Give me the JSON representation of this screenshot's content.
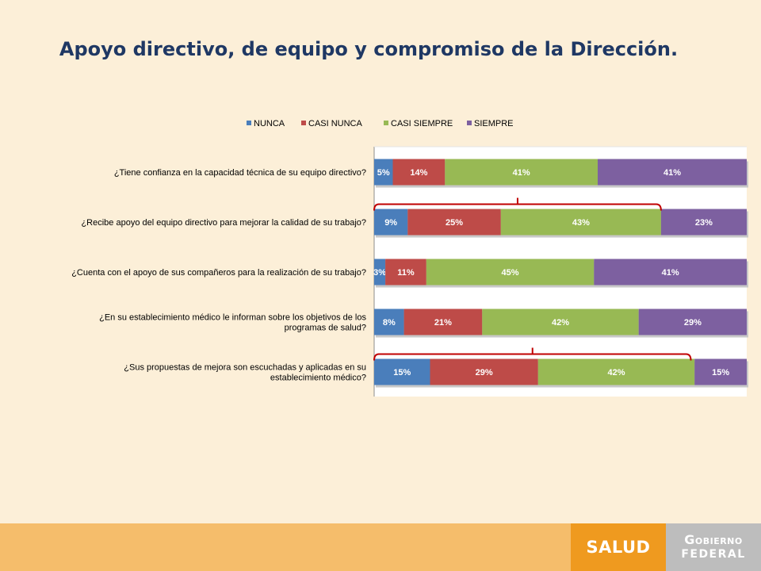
{
  "page": {
    "title": "Apoyo directivo, de equipo y compromiso de la Dirección."
  },
  "footer": {
    "salud_label": "SALUD",
    "gobierno_line1": "Gobierno",
    "gobierno_line2": "FEDERAL"
  },
  "colors": {
    "background": "#fcefd8",
    "title": "#1f3864",
    "footer_band": "#f5bd6b",
    "salud": "#ef9a1f",
    "gobierno": "#bdbdbd",
    "highlight_bracket": "#c00000"
  },
  "chart_data": {
    "type": "bar",
    "orientation": "horizontal",
    "stacked": true,
    "percent_stacked": true,
    "title": "",
    "xlabel": "",
    "ylabel": "",
    "xlim": [
      0,
      100
    ],
    "legend_position": "top",
    "grid": false,
    "categories": [
      "¿Tiene confianza en la capacidad técnica de su equipo directivo?",
      "¿Recibe apoyo del equipo directivo para mejorar la calidad de su trabajo?",
      "¿Cuenta con el apoyo de sus compañeros para la realización de su trabajo?",
      "¿En su establecimiento médico le informan sobre los objetivos de los programas de salud?",
      "¿Sus propuestas de mejora son escuchadas y  aplicadas en su establecimiento médico?"
    ],
    "category_lines": [
      [
        "¿Tiene confianza en la capacidad técnica de su equipo directivo?"
      ],
      [
        "¿Recibe apoyo del equipo directivo para mejorar la calidad de su trabajo?"
      ],
      [
        "¿Cuenta con el apoyo de sus compañeros para la realización de su trabajo?"
      ],
      [
        "¿En su establecimiento médico le informan sobre los objetivos de los",
        "programas de salud?"
      ],
      [
        "¿Sus propuestas de mejora son escuchadas y  aplicadas en su",
        "establecimiento médico?"
      ]
    ],
    "series": [
      {
        "name": "NUNCA",
        "color": "#4a7ebb",
        "values": [
          5,
          9,
          3,
          8,
          15
        ],
        "labels": [
          "5%",
          "9%",
          "3%",
          "8%",
          "15%"
        ]
      },
      {
        "name": "CASI NUNCA",
        "color": "#be4b48",
        "values": [
          14,
          25,
          11,
          21,
          29
        ],
        "labels": [
          "14%",
          "25%",
          "11%",
          "21%",
          "29%"
        ]
      },
      {
        "name": "CASI SIEMPRE",
        "color": "#98b954",
        "values": [
          41,
          43,
          45,
          42,
          42
        ],
        "labels": [
          "41%",
          "43%",
          "45%",
          "42%",
          "42%"
        ]
      },
      {
        "name": "SIEMPRE",
        "color": "#7d60a0",
        "values": [
          41,
          23,
          41,
          29,
          15
        ],
        "labels": [
          "41%",
          "23%",
          "41%",
          "29%",
          "15%"
        ]
      }
    ],
    "highlights": [
      {
        "category_index": 1,
        "from_value": 0,
        "to_value": 77
      },
      {
        "category_index": 4,
        "from_value": 0,
        "to_value": 85
      }
    ]
  }
}
